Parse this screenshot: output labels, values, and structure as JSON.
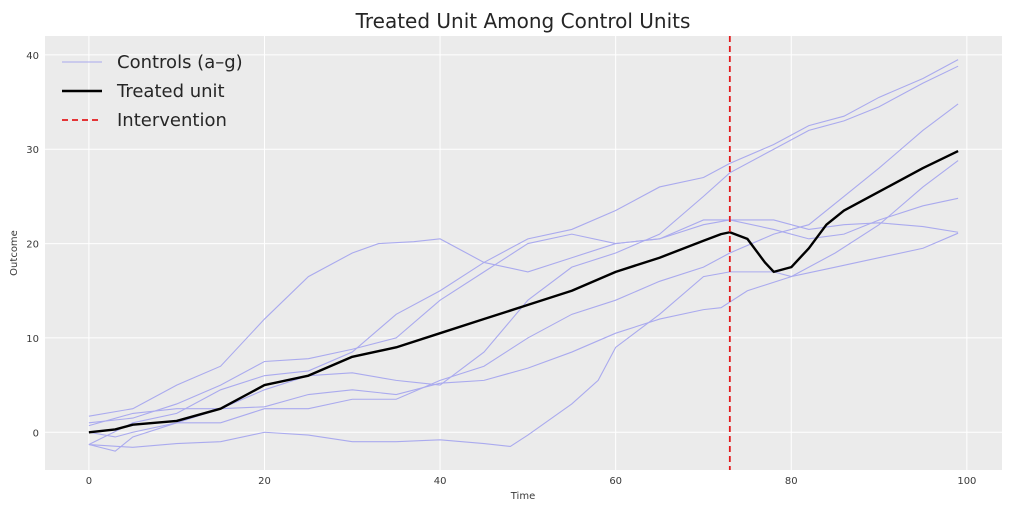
{
  "chart_data": {
    "type": "line",
    "title": "Treated Unit Among Control Units",
    "xlabel": "Time",
    "ylabel": "Outcome",
    "xlim": [
      -5,
      104
    ],
    "ylim": [
      -4,
      42
    ],
    "xticks": [
      0,
      20,
      40,
      60,
      80,
      100
    ],
    "yticks": [
      0,
      10,
      20,
      30,
      40
    ],
    "grid": true,
    "background": "#ebebeb",
    "legend_position": "top-left",
    "legend": [
      {
        "label": "Controls (a–g)",
        "color": "#aaaaee",
        "style": "solid"
      },
      {
        "label": "Treated unit",
        "color": "#000000",
        "style": "solid"
      },
      {
        "label": "Intervention",
        "color": "#e31a1c",
        "style": "dashed"
      }
    ],
    "intervention": {
      "x": 73,
      "color": "#e31a1c"
    },
    "series": [
      {
        "group": "control",
        "points": [
          [
            0,
            1.7
          ],
          [
            5,
            2.5
          ],
          [
            10,
            5.0
          ],
          [
            15,
            7.0
          ],
          [
            20,
            12.0
          ],
          [
            25,
            16.5
          ],
          [
            30,
            19.0
          ],
          [
            33,
            20.0
          ],
          [
            37,
            20.2
          ],
          [
            40,
            20.5
          ],
          [
            43,
            19.0
          ],
          [
            45,
            18.0
          ],
          [
            50,
            17.0
          ],
          [
            55,
            18.5
          ],
          [
            60,
            20.0
          ],
          [
            65,
            20.5
          ],
          [
            70,
            22.5
          ],
          [
            73,
            22.5
          ],
          [
            78,
            22.5
          ],
          [
            82,
            21.5
          ],
          [
            86,
            22.0
          ],
          [
            90,
            22.2
          ],
          [
            95,
            21.8
          ],
          [
            99,
            21.2
          ]
        ]
      },
      {
        "group": "control",
        "points": [
          [
            0,
            1.0
          ],
          [
            5,
            1.5
          ],
          [
            10,
            3.0
          ],
          [
            15,
            5.0
          ],
          [
            20,
            7.5
          ],
          [
            25,
            7.8
          ],
          [
            30,
            8.8
          ],
          [
            35,
            10.0
          ],
          [
            40,
            14.0
          ],
          [
            45,
            17.0
          ],
          [
            50,
            20.0
          ],
          [
            55,
            21.0
          ],
          [
            60,
            20.0
          ],
          [
            65,
            20.5
          ],
          [
            70,
            22.0
          ],
          [
            73,
            22.5
          ],
          [
            78,
            21.5
          ],
          [
            82,
            20.5
          ],
          [
            86,
            21.0
          ],
          [
            90,
            22.5
          ],
          [
            95,
            24.0
          ],
          [
            99,
            24.8
          ]
        ]
      },
      {
        "group": "control",
        "points": [
          [
            0,
            -1.3
          ],
          [
            5,
            -1.6
          ],
          [
            10,
            -1.2
          ],
          [
            15,
            -1.0
          ],
          [
            20,
            0.0
          ],
          [
            25,
            -0.3
          ],
          [
            30,
            -1.0
          ],
          [
            35,
            -1.0
          ],
          [
            40,
            -0.8
          ],
          [
            45,
            -1.2
          ],
          [
            48,
            -1.5
          ],
          [
            50,
            -0.3
          ],
          [
            55,
            3.0
          ],
          [
            58,
            5.5
          ],
          [
            60,
            9.0
          ],
          [
            65,
            12.5
          ],
          [
            70,
            16.5
          ],
          [
            73,
            17.0
          ],
          [
            78,
            17.0
          ],
          [
            80,
            16.5
          ],
          [
            85,
            17.5
          ],
          [
            90,
            18.5
          ],
          [
            95,
            19.5
          ],
          [
            99,
            21.1
          ]
        ]
      },
      {
        "group": "control",
        "points": [
          [
            0,
            0.7
          ],
          [
            5,
            2.0
          ],
          [
            10,
            2.5
          ],
          [
            15,
            2.5
          ],
          [
            20,
            2.7
          ],
          [
            25,
            4.0
          ],
          [
            30,
            4.5
          ],
          [
            35,
            4.0
          ],
          [
            40,
            5.2
          ],
          [
            45,
            5.5
          ],
          [
            50,
            6.8
          ],
          [
            55,
            8.5
          ],
          [
            60,
            10.5
          ],
          [
            65,
            12.0
          ],
          [
            70,
            13.0
          ],
          [
            72,
            13.2
          ],
          [
            75,
            15.0
          ],
          [
            80,
            16.5
          ],
          [
            85,
            19.0
          ],
          [
            90,
            22.0
          ],
          [
            95,
            26.0
          ],
          [
            99,
            28.8
          ]
        ]
      },
      {
        "group": "control",
        "points": [
          [
            0,
            0.0
          ],
          [
            3,
            -0.5
          ],
          [
            5,
            0.0
          ],
          [
            10,
            1.0
          ],
          [
            15,
            1.0
          ],
          [
            20,
            2.5
          ],
          [
            25,
            2.5
          ],
          [
            30,
            3.5
          ],
          [
            35,
            3.5
          ],
          [
            40,
            5.5
          ],
          [
            45,
            7.0
          ],
          [
            50,
            10.0
          ],
          [
            55,
            12.5
          ],
          [
            60,
            14.0
          ],
          [
            65,
            16.0
          ],
          [
            70,
            17.5
          ],
          [
            73,
            19.0
          ],
          [
            78,
            21.0
          ],
          [
            82,
            22.0
          ],
          [
            86,
            25.0
          ],
          [
            90,
            28.0
          ],
          [
            95,
            32.0
          ],
          [
            99,
            34.8
          ]
        ]
      },
      {
        "group": "control",
        "points": [
          [
            0,
            -1.3
          ],
          [
            3,
            -2.0
          ],
          [
            5,
            -0.5
          ],
          [
            10,
            1.0
          ],
          [
            15,
            2.5
          ],
          [
            20,
            4.5
          ],
          [
            25,
            6.0
          ],
          [
            30,
            6.3
          ],
          [
            35,
            5.5
          ],
          [
            40,
            5.0
          ],
          [
            45,
            8.5
          ],
          [
            50,
            14.0
          ],
          [
            55,
            17.5
          ],
          [
            60,
            19.0
          ],
          [
            65,
            21.0
          ],
          [
            70,
            25.0
          ],
          [
            73,
            27.5
          ],
          [
            78,
            30.0
          ],
          [
            82,
            32.0
          ],
          [
            86,
            33.0
          ],
          [
            90,
            34.5
          ],
          [
            95,
            37.0
          ],
          [
            99,
            38.8
          ]
        ]
      },
      {
        "group": "control",
        "points": [
          [
            0,
            -1.3
          ],
          [
            5,
            1.0
          ],
          [
            10,
            2.0
          ],
          [
            15,
            4.5
          ],
          [
            20,
            6.0
          ],
          [
            25,
            6.5
          ],
          [
            30,
            8.5
          ],
          [
            35,
            12.5
          ],
          [
            40,
            15.0
          ],
          [
            45,
            18.0
          ],
          [
            50,
            20.5
          ],
          [
            55,
            21.5
          ],
          [
            60,
            23.5
          ],
          [
            65,
            26.0
          ],
          [
            70,
            27.0
          ],
          [
            73,
            28.5
          ],
          [
            78,
            30.5
          ],
          [
            82,
            32.5
          ],
          [
            86,
            33.5
          ],
          [
            90,
            35.5
          ],
          [
            95,
            37.5
          ],
          [
            99,
            39.5
          ]
        ]
      },
      {
        "group": "treated",
        "points": [
          [
            0,
            0.0
          ],
          [
            3,
            0.3
          ],
          [
            5,
            0.8
          ],
          [
            10,
            1.2
          ],
          [
            15,
            2.5
          ],
          [
            20,
            5.0
          ],
          [
            25,
            6.0
          ],
          [
            30,
            8.0
          ],
          [
            35,
            9.0
          ],
          [
            40,
            10.5
          ],
          [
            45,
            12.0
          ],
          [
            50,
            13.5
          ],
          [
            55,
            15.0
          ],
          [
            60,
            17.0
          ],
          [
            65,
            18.5
          ],
          [
            70,
            20.3
          ],
          [
            72,
            21.0
          ],
          [
            73,
            21.2
          ],
          [
            75,
            20.5
          ],
          [
            77,
            18.0
          ],
          [
            78,
            17.0
          ],
          [
            80,
            17.5
          ],
          [
            82,
            19.5
          ],
          [
            84,
            22.0
          ],
          [
            86,
            23.5
          ],
          [
            90,
            25.5
          ],
          [
            95,
            28.0
          ],
          [
            99,
            29.8
          ]
        ]
      }
    ]
  }
}
